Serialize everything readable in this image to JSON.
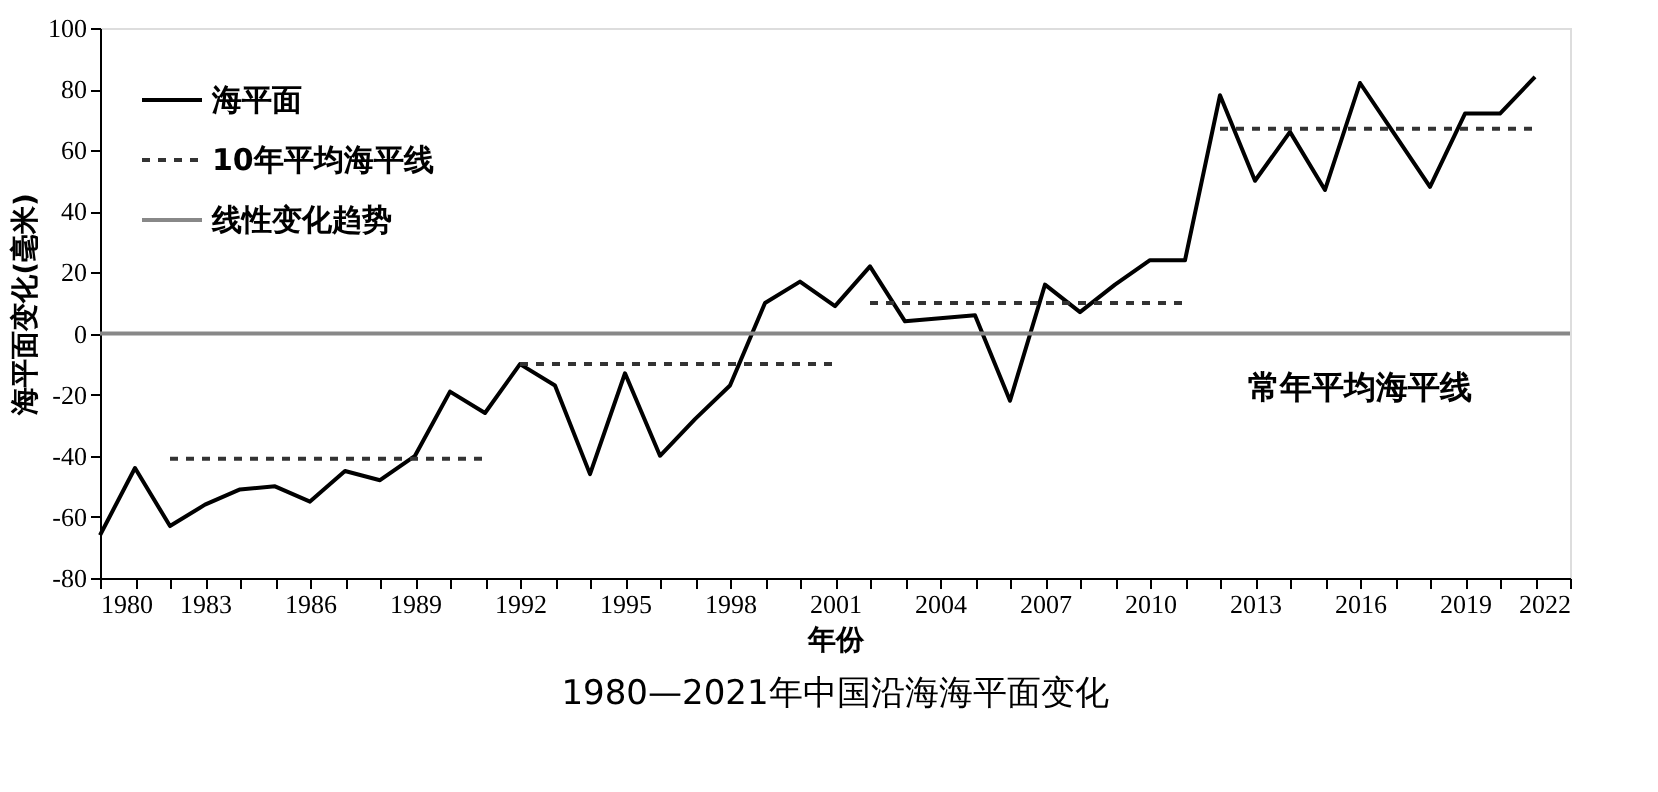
{
  "chart_data": {
    "type": "line",
    "title": "1980—2021年中国沿海海平面变化",
    "xlabel": "年份",
    "ylabel": "海平面变化(毫米)",
    "x": [
      1980,
      1981,
      1982,
      1983,
      1984,
      1985,
      1986,
      1987,
      1988,
      1989,
      1990,
      1991,
      1992,
      1993,
      1994,
      1995,
      1996,
      1997,
      1998,
      1999,
      2000,
      2001,
      2002,
      2003,
      2004,
      2005,
      2006,
      2007,
      2008,
      2009,
      2010,
      2011,
      2012,
      2013,
      2014,
      2015,
      2016,
      2017,
      2018,
      2019,
      2020,
      2021
    ],
    "series": [
      {
        "name": "海平面",
        "color": "#000000",
        "line_style": "solid",
        "values": [
          -66,
          -44,
          -63,
          -56,
          -51,
          -50,
          -55,
          -45,
          -48,
          -40,
          -19,
          -26,
          -10,
          -17,
          -46,
          -13,
          -40,
          -28,
          -17,
          10,
          17,
          9,
          22,
          4,
          5,
          6,
          -22,
          16,
          7,
          16,
          24,
          24,
          78,
          50,
          66,
          47,
          82,
          65,
          48,
          72,
          72,
          84
        ]
      },
      {
        "name": "10年平均海平线",
        "color": "#333333",
        "line_style": "dashed",
        "x": [
          1982,
          1991
        ],
        "values": [
          -41,
          -41
        ]
      },
      {
        "color": "#333333",
        "line_style": "dashed",
        "x": [
          1992,
          2001
        ],
        "values": [
          -10,
          -10
        ]
      },
      {
        "color": "#333333",
        "line_style": "dashed",
        "x": [
          2002,
          2011
        ],
        "values": [
          10,
          10
        ]
      },
      {
        "color": "#333333",
        "line_style": "dashed",
        "x": [
          2012,
          2021
        ],
        "values": [
          67,
          67
        ]
      },
      {
        "name": "线性变化趋势",
        "color": "#888888",
        "line_style": "solid",
        "x": [
          1980,
          2022
        ],
        "values": [
          0,
          0
        ]
      }
    ],
    "annotations": [
      "常年平均海平线"
    ],
    "xlim": [
      1980,
      2022
    ],
    "ylim": [
      -80,
      100
    ],
    "xticks": [
      1980,
      {
        "value": 1981,
        "label": null
      },
      {
        "value": 1982,
        "label": null
      },
      1983,
      {
        "value": 1984,
        "label": null
      },
      {
        "value": 1985,
        "label": null
      },
      1986,
      {
        "value": 1987,
        "label": null
      },
      {
        "value": 1988,
        "label": null
      },
      1989,
      {
        "value": 1990,
        "label": null
      },
      {
        "value": 1991,
        "label": null
      },
      1992,
      {
        "value": 1993,
        "label": null
      },
      {
        "value": 1994,
        "label": null
      },
      1995,
      {
        "value": 1996,
        "label": null
      },
      {
        "value": 1997,
        "label": null
      },
      1998,
      {
        "value": 1999,
        "label": null
      },
      {
        "value": 2000,
        "label": null
      },
      2001,
      {
        "value": 2002,
        "label": null
      },
      {
        "value": 2003,
        "label": null
      },
      2004,
      {
        "value": 2005,
        "label": null
      },
      {
        "value": 2006,
        "label": null
      },
      2007,
      {
        "value": 2008,
        "label": null
      },
      {
        "value": 2009,
        "label": null
      },
      2010,
      {
        "value": 2011,
        "label": null
      },
      {
        "value": 2012,
        "label": null
      },
      2013,
      {
        "value": 2014,
        "label": null
      },
      {
        "value": 2015,
        "label": null
      },
      2016,
      {
        "value": 2017,
        "label": null
      },
      {
        "value": 2018,
        "label": null
      },
      2019,
      {
        "value": 2020,
        "label": null
      },
      {
        "value": 2021,
        "label": null
      },
      2022
    ],
    "yticks": [
      -80,
      -60,
      -40,
      -20,
      0,
      20,
      40,
      60,
      80,
      100
    ],
    "grid": false,
    "legend": "top left",
    "marker": "none"
  }
}
